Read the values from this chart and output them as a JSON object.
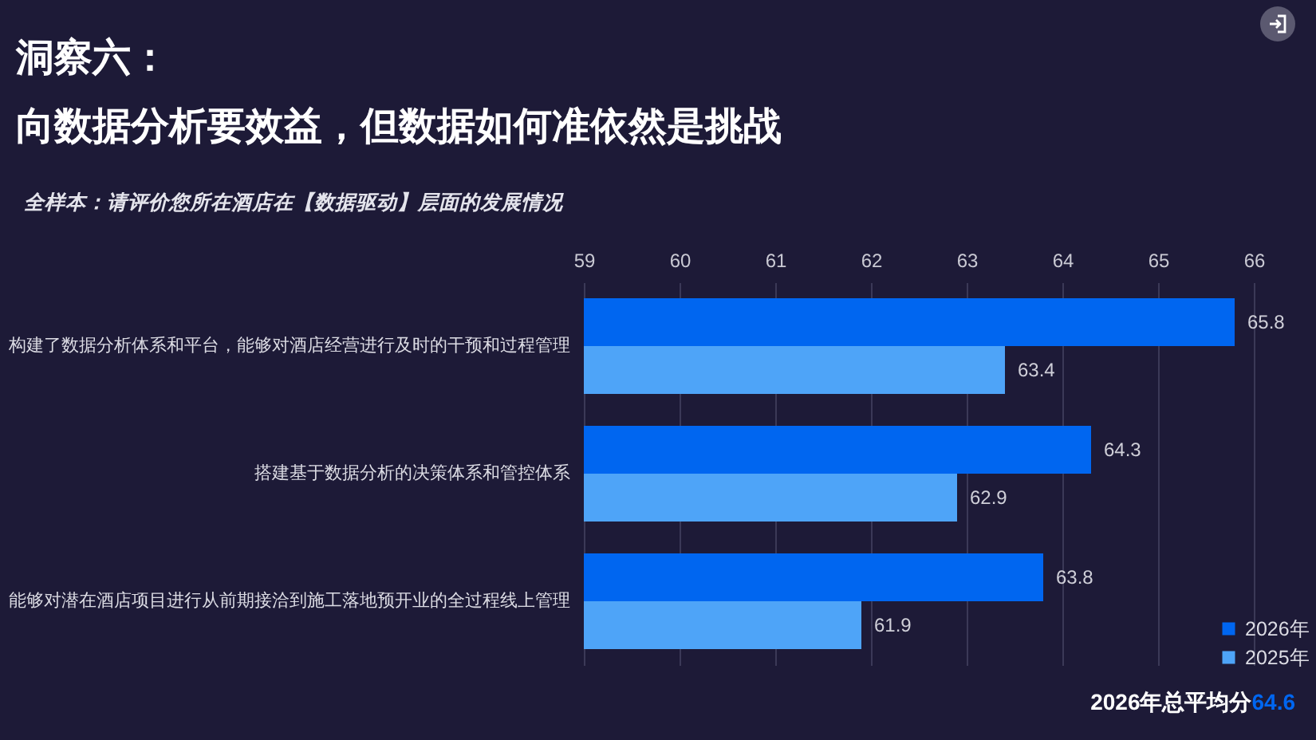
{
  "chart_data": {
    "type": "bar",
    "orientation": "horizontal",
    "title": "洞察六：",
    "subtitle": "向数据分析要效益，但数据如何准依然是挑战",
    "annotations": [
      "全样本：请评价您所在酒店在【数据驱动】层面的发展情况",
      "2026年总平均分64.6"
    ],
    "categories": [
      "构建了数据分析体系和平台，能够对酒店经营进行及时的干预和过程管理",
      "搭建基于数据分析的决策体系和管控体系",
      "能够对潜在酒店项目进行从前期接洽到施工落地预开业的全过程线上管理"
    ],
    "series": [
      {
        "name": "2026年",
        "color": "#0066f0",
        "values": [
          65.8,
          64.3,
          63.8
        ]
      },
      {
        "name": "2025年",
        "color": "#4ea4f8",
        "values": [
          63.4,
          62.9,
          61.9
        ]
      }
    ],
    "xlim": [
      59,
      66
    ],
    "xticks": [
      59,
      60,
      61,
      62,
      63,
      64,
      65,
      66
    ],
    "grid": "x",
    "legend": "bottom right",
    "data_labels": true
  }
}
